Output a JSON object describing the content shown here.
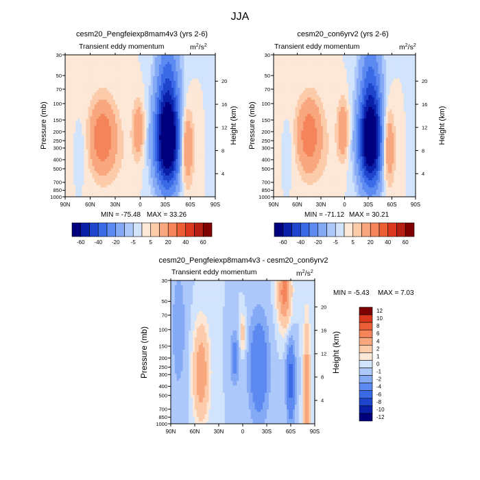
{
  "figure": {
    "title": "JJA"
  },
  "colors": {
    "abs_scale": [
      "#00007f",
      "#0a1fa8",
      "#1f45cc",
      "#3b6ae6",
      "#5c8af0",
      "#85aaf5",
      "#adc8fa",
      "#d2e3fc",
      "#fde7d6",
      "#fccbaa",
      "#f9a77e",
      "#f5845a",
      "#ec5e36",
      "#d9381e",
      "#b51f14",
      "#7f0000"
    ],
    "diff_scale": [
      "#00007f",
      "#0a1fa8",
      "#1f45cc",
      "#3b6ae6",
      "#5c8af0",
      "#85aaf5",
      "#adc8fa",
      "#d2e3fc",
      "#fde7d6",
      "#fccbaa",
      "#f9a77e",
      "#f5845a",
      "#ec5e36",
      "#d9381e",
      "#7f0000"
    ],
    "background": "#fde7d6"
  },
  "chart_data": [
    {
      "type": "heatmap",
      "title": "cesm20_Pengfeiexp8mam4v3 (yrs 2-6)",
      "subtitle": "Transient eddy momentum",
      "units_base": "m",
      "units_exp": "2",
      "units_tail": "/s",
      "units_exp2": "2",
      "ylabel": "Pressure (mb)",
      "y2label": "Height (km)",
      "x_ticks": [
        "90N",
        "60N",
        "30N",
        "0",
        "30S",
        "60S",
        "90S"
      ],
      "y_ticks": [
        "30",
        "50",
        "70",
        "100",
        "150",
        "200",
        "250",
        "300",
        "400",
        "500",
        "700",
        "850",
        "1000"
      ],
      "y_tick_values": [
        30,
        50,
        70,
        100,
        150,
        200,
        250,
        300,
        400,
        500,
        700,
        850,
        1000
      ],
      "height_ticks": [
        "20",
        "16",
        "12",
        "8",
        "4"
      ],
      "height_tick_values": [
        20,
        16,
        12,
        8,
        4
      ],
      "min_label": "MIN = -75.48",
      "max_label": "MAX =  33.26",
      "min": -75.48,
      "max": 33.26,
      "features": [
        {
          "lat": 45,
          "p": 230,
          "amp": 30,
          "wlat": 11,
          "wlogp": 0.28
        },
        {
          "lat": 2,
          "p": 190,
          "amp": 18,
          "wlat": 5,
          "wlogp": 0.22
        },
        {
          "lat": -33,
          "p": 270,
          "amp": -75,
          "wlat": 11,
          "wlogp": 0.35
        },
        {
          "lat": -33,
          "p": 60,
          "amp": -30,
          "wlat": 10,
          "wlogp": 0.45
        },
        {
          "lat": -55,
          "p": 290,
          "amp": 27,
          "wlat": 6,
          "wlogp": 0.3
        },
        {
          "lat": 70,
          "p": 300,
          "amp": -4,
          "wlat": 4,
          "wlogp": 0.2
        },
        {
          "lat": 20,
          "p": 400,
          "amp": 3,
          "wlat": 10,
          "wlogp": 0.4
        }
      ],
      "colorbar_labels": [
        "-60",
        "-40",
        "-20",
        "-5",
        "5",
        "20",
        "40",
        "60"
      ]
    },
    {
      "type": "heatmap",
      "title": "cesm20_con6yrv2 (yrs 2-6)",
      "subtitle": "Transient eddy momentum",
      "units_base": "m",
      "units_exp": "2",
      "units_tail": "/s",
      "units_exp2": "2",
      "ylabel": "Pressure (mb)",
      "y2label": "Height (km)",
      "x_ticks": [
        "90N",
        "60N",
        "30N",
        "0",
        "30S",
        "60S",
        "90S"
      ],
      "y_ticks": [
        "30",
        "50",
        "70",
        "100",
        "150",
        "200",
        "250",
        "300",
        "400",
        "500",
        "700",
        "850",
        "1000"
      ],
      "y_tick_values": [
        30,
        50,
        70,
        100,
        150,
        200,
        250,
        300,
        400,
        500,
        700,
        850,
        1000
      ],
      "height_ticks": [
        "20",
        "16",
        "12",
        "8",
        "4"
      ],
      "height_tick_values": [
        20,
        16,
        12,
        8,
        4
      ],
      "min_label": "MIN = -71.12",
      "max_label": "MAX =  30.21",
      "min": -71.12,
      "max": 30.21,
      "features": [
        {
          "lat": 45,
          "p": 220,
          "amp": 28,
          "wlat": 11,
          "wlogp": 0.28
        },
        {
          "lat": 2,
          "p": 190,
          "amp": 20,
          "wlat": 5,
          "wlogp": 0.22
        },
        {
          "lat": -33,
          "p": 270,
          "amp": -71,
          "wlat": 11,
          "wlogp": 0.35
        },
        {
          "lat": -33,
          "p": 60,
          "amp": -28,
          "wlat": 10,
          "wlogp": 0.45
        },
        {
          "lat": -55,
          "p": 290,
          "amp": 25,
          "wlat": 6,
          "wlogp": 0.3
        },
        {
          "lat": 70,
          "p": 300,
          "amp": -4,
          "wlat": 4,
          "wlogp": 0.2
        },
        {
          "lat": 20,
          "p": 400,
          "amp": 3,
          "wlat": 10,
          "wlogp": 0.4
        }
      ],
      "colorbar_labels": [
        "-60",
        "-40",
        "-20",
        "-5",
        "5",
        "20",
        "40",
        "60"
      ]
    },
    {
      "type": "heatmap",
      "title": "cesm20_Pengfeiexp8mam4v3 - cesm20_con6yrv2",
      "subtitle": "Transient eddy momentum",
      "units_base": "m",
      "units_exp": "2",
      "units_tail": "/s",
      "units_exp2": "2",
      "ylabel": "Pressure (mb)",
      "y2label": "Height (km)",
      "x_ticks": [
        "90N",
        "60N",
        "30N",
        "0",
        "30S",
        "60S",
        "90S"
      ],
      "y_ticks": [
        "30",
        "50",
        "70",
        "100",
        "150",
        "200",
        "250",
        "300",
        "400",
        "500",
        "700",
        "850",
        "1000"
      ],
      "y_tick_values": [
        30,
        50,
        70,
        100,
        150,
        200,
        250,
        300,
        400,
        500,
        700,
        850,
        1000
      ],
      "height_ticks": [
        "20",
        "16",
        "12",
        "8",
        "4"
      ],
      "height_tick_values": [
        20,
        16,
        12,
        8,
        4
      ],
      "min_label": "MIN =  -5.43",
      "max_label": "MAX =   7.03",
      "min": -5.43,
      "max": 7.03,
      "features": [
        {
          "lat": 52,
          "p": 290,
          "amp": 6,
          "wlat": 7,
          "wlogp": 0.35
        },
        {
          "lat": -52,
          "p": 40,
          "amp": 7,
          "wlat": 6,
          "wlogp": 0.25
        },
        {
          "lat": 0,
          "p": 110,
          "amp": 3,
          "wlat": 3,
          "wlogp": 0.15
        },
        {
          "lat": -20,
          "p": 250,
          "amp": -4,
          "wlat": 9,
          "wlogp": 0.4
        },
        {
          "lat": -60,
          "p": 350,
          "amp": -5,
          "wlat": 4,
          "wlogp": 0.3
        },
        {
          "lat": -80,
          "p": 450,
          "amp": 6,
          "wlat": 3,
          "wlogp": 0.5
        },
        {
          "lat": 10,
          "p": 200,
          "amp": -3,
          "wlat": 4,
          "wlogp": 0.2
        },
        {
          "lat": 80,
          "p": 100,
          "amp": -1.5,
          "wlat": 8,
          "wlogp": 0.6
        }
      ],
      "colorbar_labels": [
        "12",
        "10",
        "8",
        "6",
        "4",
        "2",
        "1",
        "0",
        "-1",
        "-2",
        "-4",
        "-6",
        "-8",
        "-10",
        "-12"
      ]
    }
  ]
}
